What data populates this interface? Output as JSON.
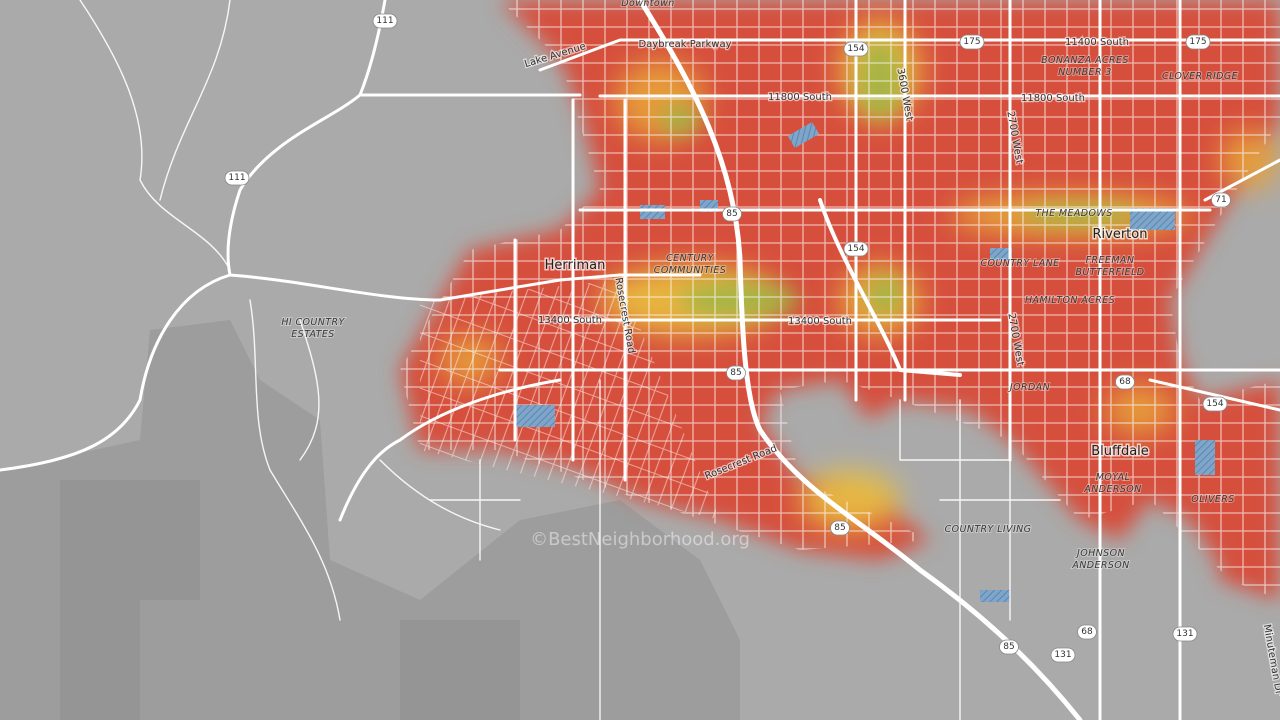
{
  "place_labels": [
    [
      "Downtown"
    ],
    [
      "BONANZA ACRES",
      "NUMBER 3"
    ],
    [
      "CLOVER RIDGE"
    ],
    [
      "THE MEADOWS"
    ],
    [
      "CENTURY",
      "COMMUNITIES"
    ],
    [
      "COUNTRY LANE"
    ],
    [
      "FREEMAN",
      "BUTTERFIELD"
    ],
    [
      "HAMILTON ACRES"
    ],
    [
      "HI COUNTRY",
      "ESTATES"
    ],
    [
      "JORDAN"
    ],
    [
      "MOYAL",
      "ANDERSON"
    ],
    [
      "OLIVERS"
    ],
    [
      "COUNTRY LIVING"
    ],
    [
      "JOHNSON",
      "ANDERSON"
    ]
  ],
  "city_labels": [
    "Herriman",
    "Riverton",
    "Bluffdale"
  ],
  "road_labels": [
    "Daybreak Parkway",
    "Lake Avenue",
    "11400 South",
    "11800 South",
    "11800 South",
    "3600 West",
    "2700 West",
    "2700 West",
    "13400 South",
    "13400 South",
    "Rosecrest Road",
    "Rosecrest Road",
    "Minuteman Dr"
  ],
  "shields": [
    "111",
    "111",
    "154",
    "175",
    "175",
    "85",
    "154",
    "71",
    "85",
    "68",
    "154",
    "85",
    "85",
    "131",
    "68",
    "131"
  ],
  "watermark": "©BestNeighborhood.org"
}
